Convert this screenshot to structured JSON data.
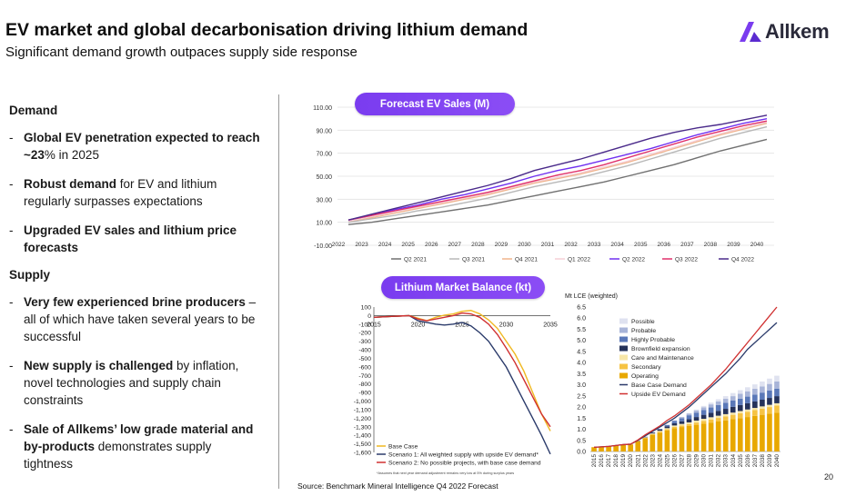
{
  "header": {
    "title": "EV market and global decarbonisation driving lithium demand",
    "subtitle": "Significant demand  growth outpaces supply side response",
    "logo_text": "Allkem"
  },
  "demand": {
    "heading": "Demand",
    "bullets": [
      {
        "bold": "Global EV penetration expected to reach ~23",
        "rest": "% in 2025"
      },
      {
        "bold": "Robust demand",
        "rest": " for EV and lithium regularly surpasses expectations"
      },
      {
        "bold": "Upgraded EV sales and lithium price forecasts",
        "rest": ""
      }
    ]
  },
  "supply": {
    "heading": "Supply",
    "bullets": [
      {
        "bold": "Very few experienced brine producers",
        "rest": " – all of which have taken several years to be successful"
      },
      {
        "bold": "New supply is challenged",
        "rest": " by inflation, novel technologies and supply chain constraints"
      },
      {
        "bold": "Sale of Allkems’ low grade material and by-products",
        "rest": " demonstrates supply tightness"
      }
    ]
  },
  "source": "Source: Benchmark Mineral Intelligence Q4 2022 Forecast",
  "page_number": "20",
  "chart_data": [
    {
      "id": "ev_sales",
      "type": "line",
      "title": "Forecast EV Sales (M)",
      "x": [
        2022,
        2023,
        2024,
        2025,
        2026,
        2027,
        2028,
        2029,
        2030,
        2031,
        2032,
        2033,
        2034,
        2035,
        2036,
        2037,
        2038,
        2039,
        2040
      ],
      "x_tick_labels": [
        "2022",
        "2023",
        "2024",
        "2025",
        "2026",
        "2027",
        "2028",
        "2029",
        "2030",
        "2031",
        "2032",
        "2033",
        "2034",
        "2035",
        "2036",
        "2037",
        "2038",
        "2039",
        "2040"
      ],
      "ylim": [
        -10,
        110
      ],
      "y_ticks": [
        -10,
        10,
        30,
        50,
        70,
        90,
        110
      ],
      "y_tick_labels": [
        "-10.00",
        "10.00",
        "30.00",
        "50.00",
        "70.00",
        "90.00",
        "110.00"
      ],
      "grid": true,
      "legend_position": "bottom",
      "series": [
        {
          "name": "Q2 2021",
          "color": "#707070",
          "values": [
            8,
            10,
            13,
            16,
            19,
            22,
            25,
            29,
            33,
            37,
            41,
            45,
            50,
            55,
            60,
            66,
            72,
            77,
            82
          ]
        },
        {
          "name": "Q3 2021",
          "color": "#b8b8b8",
          "values": [
            10,
            13,
            16,
            20,
            23,
            27,
            31,
            36,
            41,
            45,
            49,
            54,
            59,
            65,
            71,
            77,
            83,
            88,
            93
          ]
        },
        {
          "name": "Q4 2021",
          "color": "#f0b48c",
          "values": [
            11,
            14,
            18,
            22,
            26,
            30,
            34,
            39,
            44,
            48,
            52,
            57,
            62,
            68,
            74,
            80,
            86,
            91,
            96
          ]
        },
        {
          "name": "Q1 2022",
          "color": "#f5cfd6",
          "values": [
            11,
            15,
            19,
            23,
            27,
            31,
            35,
            40,
            45,
            49,
            53,
            58,
            63,
            69,
            75,
            81,
            87,
            92,
            97
          ]
        },
        {
          "name": "Q2 2022",
          "color": "#7030f0",
          "values": [
            12,
            16,
            21,
            25,
            30,
            34,
            39,
            44,
            50,
            55,
            59,
            64,
            69,
            74,
            80,
            86,
            91,
            96,
            100
          ]
        },
        {
          "name": "Q3 2022",
          "color": "#e0306a",
          "values": [
            12,
            16,
            20,
            24,
            28,
            32,
            36,
            41,
            46,
            51,
            55,
            60,
            66,
            72,
            78,
            84,
            89,
            94,
            98
          ]
        },
        {
          "name": "Q4 2022",
          "color": "#4a2a8a",
          "values": [
            12,
            17,
            22,
            27,
            32,
            37,
            42,
            48,
            55,
            60,
            65,
            71,
            77,
            83,
            88,
            92,
            95,
            99,
            103
          ]
        }
      ]
    },
    {
      "id": "market_balance",
      "type": "line",
      "title": "Lithium Market Balance (kt)",
      "x_ticks": [
        2015,
        2020,
        2025,
        2030,
        2035
      ],
      "x_tick_labels": [
        "2015",
        "2020",
        "2025",
        "2030",
        "2035"
      ],
      "xlim": [
        2015,
        2035
      ],
      "ylim": [
        -1600,
        100
      ],
      "y_ticks": [
        100,
        0,
        -100,
        -200,
        -300,
        -400,
        -500,
        -600,
        -700,
        -800,
        -900,
        -1000,
        -1100,
        -1200,
        -1300,
        -1400,
        -1500,
        -1600
      ],
      "y_tick_labels": [
        "100",
        "0",
        "-100",
        "-200",
        "-300",
        "-400",
        "-500",
        "-600",
        "-700",
        "-800",
        "-900",
        "-1,000",
        "-1,100",
        "-1,200",
        "-1,300",
        "-1,400",
        "-1,500",
        "-1,600"
      ],
      "legend_position": "bottom-left",
      "footnote": "*Assumes that next year demand adjustment remains very low at 5% during surplus years",
      "series": [
        {
          "name": "Base Case",
          "color": "#f0b820",
          "x": [
            2015,
            2016,
            2017,
            2018,
            2019,
            2020,
            2021,
            2022,
            2023,
            2024,
            2025,
            2026,
            2027,
            2028,
            2029,
            2030,
            2031,
            2032,
            2033,
            2034,
            2035
          ],
          "values": [
            -20,
            -15,
            -10,
            -5,
            0,
            -30,
            -60,
            -20,
            5,
            20,
            50,
            60,
            20,
            -50,
            -150,
            -300,
            -450,
            -650,
            -900,
            -1150,
            -1350
          ]
        },
        {
          "name": "Scenario 1: All weighted supply with upside EV demand*",
          "color": "#2a3a6a",
          "x": [
            2015,
            2016,
            2017,
            2018,
            2019,
            2020,
            2021,
            2022,
            2023,
            2024,
            2025,
            2026,
            2027,
            2028,
            2029,
            2030,
            2031,
            2032,
            2033,
            2034,
            2035
          ],
          "values": [
            -20,
            -15,
            -10,
            -5,
            0,
            -60,
            -80,
            -100,
            -110,
            -100,
            -80,
            -120,
            -200,
            -300,
            -450,
            -600,
            -800,
            -1000,
            -1200,
            -1400,
            -1620
          ]
        },
        {
          "name": "Scenario 2: No possible projects, with base case demand",
          "color": "#d03030",
          "x": [
            2015,
            2016,
            2017,
            2018,
            2019,
            2020,
            2021,
            2022,
            2023,
            2024,
            2025,
            2026,
            2027,
            2028,
            2029,
            2030,
            2031,
            2032,
            2033,
            2034,
            2035
          ],
          "values": [
            -20,
            -15,
            -10,
            -5,
            0,
            -40,
            -60,
            -40,
            -20,
            0,
            30,
            20,
            -20,
            -100,
            -220,
            -380,
            -550,
            -750,
            -950,
            -1150,
            -1300
          ]
        }
      ]
    },
    {
      "id": "lce_supply_demand",
      "type": "stacked_bar_line",
      "ylabel": "Mt LCE (weighted)",
      "categories": [
        "2015",
        "2016",
        "2017",
        "2018",
        "2019",
        "2020",
        "2021",
        "2022",
        "2023",
        "2024",
        "2025",
        "2026",
        "2027",
        "2028",
        "2029",
        "2030",
        "2031",
        "2032",
        "2033",
        "2034",
        "2035",
        "2036",
        "2037",
        "2038",
        "2039",
        "2040"
      ],
      "ylim": [
        0,
        6.5
      ],
      "y_ticks": [
        0,
        0.5,
        1.0,
        1.5,
        2.0,
        2.5,
        3.0,
        3.5,
        4.0,
        4.5,
        5.0,
        5.5,
        6.0,
        6.5
      ],
      "y_tick_labels": [
        "0.0",
        "0.5",
        "1.0",
        "1.5",
        "2.0",
        "2.5",
        "3.0",
        "3.5",
        "4.0",
        "4.5",
        "5.0",
        "5.5",
        "6.0",
        "6.5"
      ],
      "legend_position": "top-left",
      "series": [
        {
          "name": "Possible",
          "color": "#dfe2f0",
          "values": [
            0,
            0,
            0,
            0,
            0,
            0,
            0,
            0,
            0,
            0,
            0,
            0,
            0.01,
            0.02,
            0.04,
            0.06,
            0.08,
            0.1,
            0.12,
            0.14,
            0.16,
            0.18,
            0.2,
            0.22,
            0.24,
            0.26
          ]
        },
        {
          "name": "Probable",
          "color": "#a8b4d8",
          "values": [
            0,
            0,
            0,
            0,
            0,
            0,
            0,
            0,
            0,
            0,
            0.01,
            0.03,
            0.05,
            0.08,
            0.1,
            0.12,
            0.14,
            0.16,
            0.18,
            0.2,
            0.22,
            0.24,
            0.26,
            0.28,
            0.3,
            0.32
          ]
        },
        {
          "name": "Highly Probable",
          "color": "#5a78b8",
          "values": [
            0,
            0,
            0,
            0,
            0,
            0,
            0,
            0,
            0.01,
            0.03,
            0.06,
            0.1,
            0.14,
            0.18,
            0.2,
            0.22,
            0.24,
            0.26,
            0.27,
            0.28,
            0.29,
            0.3,
            0.31,
            0.32,
            0.33,
            0.34
          ]
        },
        {
          "name": "Brownfield expansion",
          "color": "#25325a",
          "values": [
            0,
            0,
            0,
            0,
            0,
            0,
            0.01,
            0.02,
            0.04,
            0.06,
            0.08,
            0.1,
            0.12,
            0.14,
            0.16,
            0.18,
            0.2,
            0.22,
            0.24,
            0.26,
            0.27,
            0.28,
            0.29,
            0.3,
            0.31,
            0.32
          ]
        },
        {
          "name": "Care and Maintenance",
          "color": "#f7e6a8",
          "values": [
            0,
            0,
            0,
            0,
            0,
            0,
            0.01,
            0.02,
            0.03,
            0.04,
            0.05,
            0.06,
            0.07,
            0.08,
            0.09,
            0.1,
            0.1,
            0.1,
            0.1,
            0.1,
            0.1,
            0.1,
            0.1,
            0.1,
            0.1,
            0.1
          ]
        },
        {
          "name": "Secondary",
          "color": "#f6c343",
          "values": [
            0.01,
            0.01,
            0.01,
            0.01,
            0.01,
            0.01,
            0.02,
            0.02,
            0.03,
            0.04,
            0.05,
            0.06,
            0.07,
            0.08,
            0.1,
            0.12,
            0.14,
            0.16,
            0.18,
            0.2,
            0.22,
            0.24,
            0.26,
            0.28,
            0.3,
            0.32
          ]
        },
        {
          "name": "Operating",
          "color": "#e8a800",
          "values": [
            0.19,
            0.21,
            0.23,
            0.26,
            0.29,
            0.31,
            0.45,
            0.6,
            0.75,
            0.85,
            0.95,
            1.05,
            1.1,
            1.15,
            1.2,
            1.25,
            1.3,
            1.35,
            1.4,
            1.45,
            1.5,
            1.55,
            1.6,
            1.65,
            1.7,
            1.75
          ]
        }
      ],
      "lines": [
        {
          "name": "Base Case Demand",
          "color": "#2a3a6a",
          "values": [
            0.19,
            0.21,
            0.23,
            0.27,
            0.31,
            0.33,
            0.5,
            0.7,
            0.9,
            1.1,
            1.3,
            1.5,
            1.75,
            2.0,
            2.3,
            2.6,
            2.9,
            3.2,
            3.5,
            3.85,
            4.2,
            4.6,
            4.9,
            5.2,
            5.5,
            5.8
          ]
        },
        {
          "name": "Upside EV Demand",
          "color": "#d03030",
          "values": [
            0.19,
            0.21,
            0.23,
            0.27,
            0.31,
            0.33,
            0.52,
            0.75,
            0.95,
            1.15,
            1.4,
            1.6,
            1.85,
            2.1,
            2.4,
            2.7,
            3.0,
            3.35,
            3.7,
            4.1,
            4.5,
            4.9,
            5.3,
            5.7,
            6.1,
            6.5
          ]
        }
      ]
    }
  ]
}
